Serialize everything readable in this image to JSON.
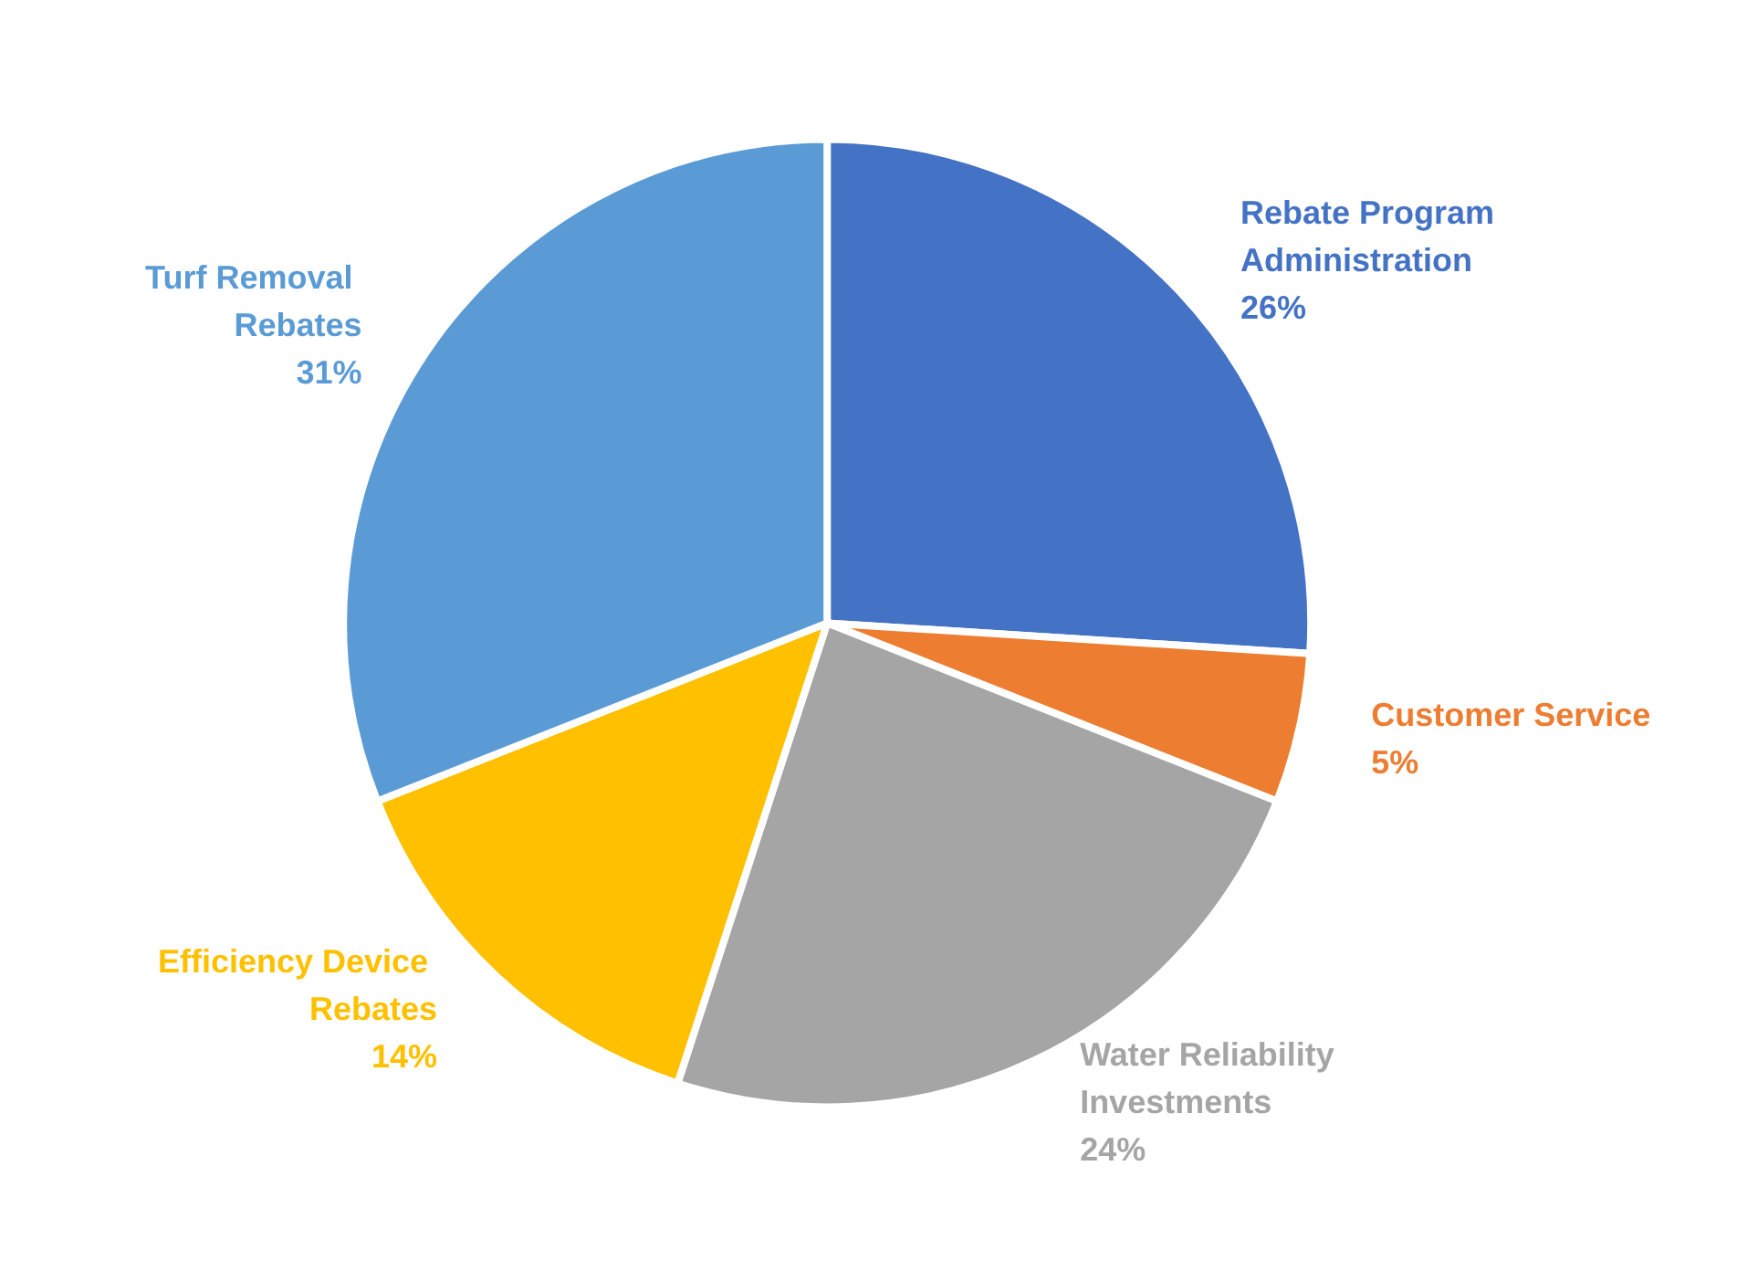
{
  "chart_data": {
    "type": "pie",
    "categories": [
      "Rebate Program Administration",
      "Customer Service",
      "Water Reliability Investments",
      "Efficiency Device Rebates",
      "Turf Removal Rebates"
    ],
    "values": [
      26,
      5,
      24,
      14,
      31
    ],
    "value_labels": [
      "26%",
      "5%",
      "24%",
      "14%",
      "31%"
    ],
    "colors": [
      "#4472c4",
      "#ed7d31",
      "#a5a5a5",
      "#ffc000",
      "#5b9bd5"
    ],
    "legend": false
  }
}
